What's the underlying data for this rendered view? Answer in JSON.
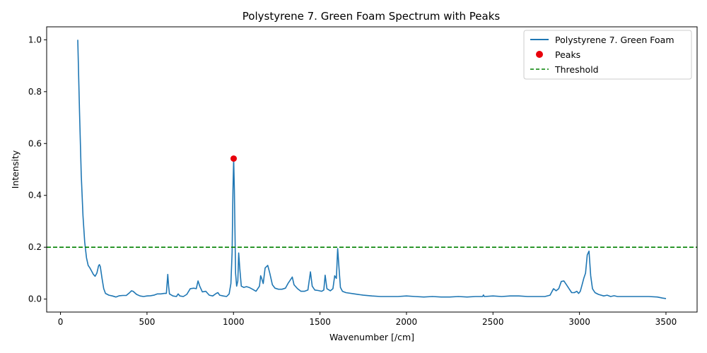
{
  "chart_data": {
    "type": "line",
    "title": "Polystyrene 7. Green Foam Spectrum with Peaks",
    "xlabel": "Wavenumber [/cm]",
    "ylabel": "Intensity",
    "xlim": [
      -80,
      3680
    ],
    "ylim": [
      -0.05,
      1.05
    ],
    "xticks": [
      0,
      500,
      1000,
      1500,
      2000,
      2500,
      3000,
      3500
    ],
    "xtick_labels": [
      "0",
      "500",
      "1000",
      "1500",
      "2000",
      "2500",
      "3000",
      "3500"
    ],
    "yticks": [
      0.0,
      0.2,
      0.4,
      0.6,
      0.8,
      1.0
    ],
    "ytick_labels": [
      "0.0",
      "0.2",
      "0.4",
      "0.6",
      "0.8",
      "1.0"
    ],
    "grid": false,
    "legend_position": "top-right",
    "series": [
      {
        "name": "Polystyrene 7. Green Foam",
        "color": "#1f77b4",
        "style": "solid",
        "points": [
          [
            100,
            1.0
          ],
          [
            110,
            0.72
          ],
          [
            120,
            0.48
          ],
          [
            130,
            0.32
          ],
          [
            140,
            0.22
          ],
          [
            150,
            0.16
          ],
          [
            160,
            0.13
          ],
          [
            170,
            0.12
          ],
          [
            180,
            0.108
          ],
          [
            190,
            0.095
          ],
          [
            200,
            0.088
          ],
          [
            210,
            0.1
          ],
          [
            220,
            0.128
          ],
          [
            225,
            0.133
          ],
          [
            230,
            0.125
          ],
          [
            240,
            0.08
          ],
          [
            250,
            0.04
          ],
          [
            260,
            0.022
          ],
          [
            280,
            0.015
          ],
          [
            300,
            0.012
          ],
          [
            320,
            0.008
          ],
          [
            340,
            0.013
          ],
          [
            360,
            0.014
          ],
          [
            380,
            0.014
          ],
          [
            400,
            0.025
          ],
          [
            410,
            0.032
          ],
          [
            420,
            0.03
          ],
          [
            440,
            0.018
          ],
          [
            460,
            0.012
          ],
          [
            480,
            0.01
          ],
          [
            500,
            0.012
          ],
          [
            520,
            0.013
          ],
          [
            540,
            0.015
          ],
          [
            560,
            0.02
          ],
          [
            580,
            0.02
          ],
          [
            600,
            0.022
          ],
          [
            612,
            0.022
          ],
          [
            620,
            0.095
          ],
          [
            625,
            0.05
          ],
          [
            630,
            0.02
          ],
          [
            650,
            0.012
          ],
          [
            670,
            0.01
          ],
          [
            680,
            0.02
          ],
          [
            690,
            0.012
          ],
          [
            710,
            0.01
          ],
          [
            730,
            0.018
          ],
          [
            750,
            0.04
          ],
          [
            770,
            0.042
          ],
          [
            785,
            0.04
          ],
          [
            795,
            0.07
          ],
          [
            805,
            0.05
          ],
          [
            820,
            0.028
          ],
          [
            840,
            0.03
          ],
          [
            860,
            0.015
          ],
          [
            880,
            0.012
          ],
          [
            900,
            0.022
          ],
          [
            910,
            0.025
          ],
          [
            920,
            0.015
          ],
          [
            940,
            0.012
          ],
          [
            960,
            0.01
          ],
          [
            975,
            0.02
          ],
          [
            985,
            0.06
          ],
          [
            992,
            0.18
          ],
          [
            997,
            0.42
          ],
          [
            1001,
            0.54
          ],
          [
            1005,
            0.42
          ],
          [
            1012,
            0.1
          ],
          [
            1018,
            0.05
          ],
          [
            1025,
            0.07
          ],
          [
            1030,
            0.178
          ],
          [
            1036,
            0.12
          ],
          [
            1045,
            0.05
          ],
          [
            1060,
            0.045
          ],
          [
            1075,
            0.048
          ],
          [
            1090,
            0.045
          ],
          [
            1110,
            0.038
          ],
          [
            1130,
            0.03
          ],
          [
            1150,
            0.05
          ],
          [
            1157,
            0.09
          ],
          [
            1163,
            0.08
          ],
          [
            1172,
            0.06
          ],
          [
            1183,
            0.12
          ],
          [
            1198,
            0.13
          ],
          [
            1210,
            0.1
          ],
          [
            1225,
            0.055
          ],
          [
            1240,
            0.042
          ],
          [
            1260,
            0.038
          ],
          [
            1280,
            0.038
          ],
          [
            1300,
            0.042
          ],
          [
            1315,
            0.06
          ],
          [
            1330,
            0.075
          ],
          [
            1340,
            0.085
          ],
          [
            1350,
            0.055
          ],
          [
            1370,
            0.04
          ],
          [
            1390,
            0.03
          ],
          [
            1410,
            0.03
          ],
          [
            1430,
            0.035
          ],
          [
            1445,
            0.105
          ],
          [
            1455,
            0.05
          ],
          [
            1470,
            0.035
          ],
          [
            1490,
            0.033
          ],
          [
            1510,
            0.03
          ],
          [
            1522,
            0.035
          ],
          [
            1530,
            0.092
          ],
          [
            1540,
            0.04
          ],
          [
            1560,
            0.032
          ],
          [
            1575,
            0.04
          ],
          [
            1585,
            0.09
          ],
          [
            1595,
            0.08
          ],
          [
            1602,
            0.195
          ],
          [
            1610,
            0.12
          ],
          [
            1618,
            0.045
          ],
          [
            1630,
            0.03
          ],
          [
            1650,
            0.025
          ],
          [
            1700,
            0.02
          ],
          [
            1750,
            0.015
          ],
          [
            1800,
            0.012
          ],
          [
            1850,
            0.01
          ],
          [
            1900,
            0.01
          ],
          [
            1950,
            0.01
          ],
          [
            2000,
            0.012
          ],
          [
            2050,
            0.01
          ],
          [
            2100,
            0.008
          ],
          [
            2150,
            0.01
          ],
          [
            2200,
            0.008
          ],
          [
            2250,
            0.008
          ],
          [
            2300,
            0.01
          ],
          [
            2350,
            0.008
          ],
          [
            2400,
            0.01
          ],
          [
            2440,
            0.01
          ],
          [
            2445,
            0.016
          ],
          [
            2450,
            0.01
          ],
          [
            2500,
            0.012
          ],
          [
            2550,
            0.01
          ],
          [
            2600,
            0.012
          ],
          [
            2650,
            0.012
          ],
          [
            2700,
            0.01
          ],
          [
            2750,
            0.01
          ],
          [
            2800,
            0.01
          ],
          [
            2830,
            0.015
          ],
          [
            2850,
            0.04
          ],
          [
            2865,
            0.032
          ],
          [
            2880,
            0.04
          ],
          [
            2895,
            0.068
          ],
          [
            2910,
            0.07
          ],
          [
            2925,
            0.055
          ],
          [
            2940,
            0.04
          ],
          [
            2955,
            0.025
          ],
          [
            2970,
            0.025
          ],
          [
            2985,
            0.03
          ],
          [
            2995,
            0.022
          ],
          [
            3005,
            0.03
          ],
          [
            3015,
            0.055
          ],
          [
            3025,
            0.08
          ],
          [
            3035,
            0.1
          ],
          [
            3045,
            0.17
          ],
          [
            3055,
            0.185
          ],
          [
            3065,
            0.09
          ],
          [
            3075,
            0.04
          ],
          [
            3090,
            0.025
          ],
          [
            3110,
            0.018
          ],
          [
            3140,
            0.012
          ],
          [
            3160,
            0.015
          ],
          [
            3180,
            0.01
          ],
          [
            3200,
            0.013
          ],
          [
            3220,
            0.01
          ],
          [
            3260,
            0.01
          ],
          [
            3300,
            0.01
          ],
          [
            3350,
            0.01
          ],
          [
            3400,
            0.01
          ],
          [
            3450,
            0.008
          ],
          [
            3480,
            0.004
          ],
          [
            3500,
            0.002
          ]
        ]
      },
      {
        "name": "Peaks",
        "type": "scatter",
        "color": "#e8000b",
        "points": [
          [
            1001,
            0.542
          ]
        ]
      },
      {
        "name": "Threshold",
        "type": "hline",
        "color": "#008000",
        "style": "dashed",
        "y": 0.2
      }
    ]
  }
}
